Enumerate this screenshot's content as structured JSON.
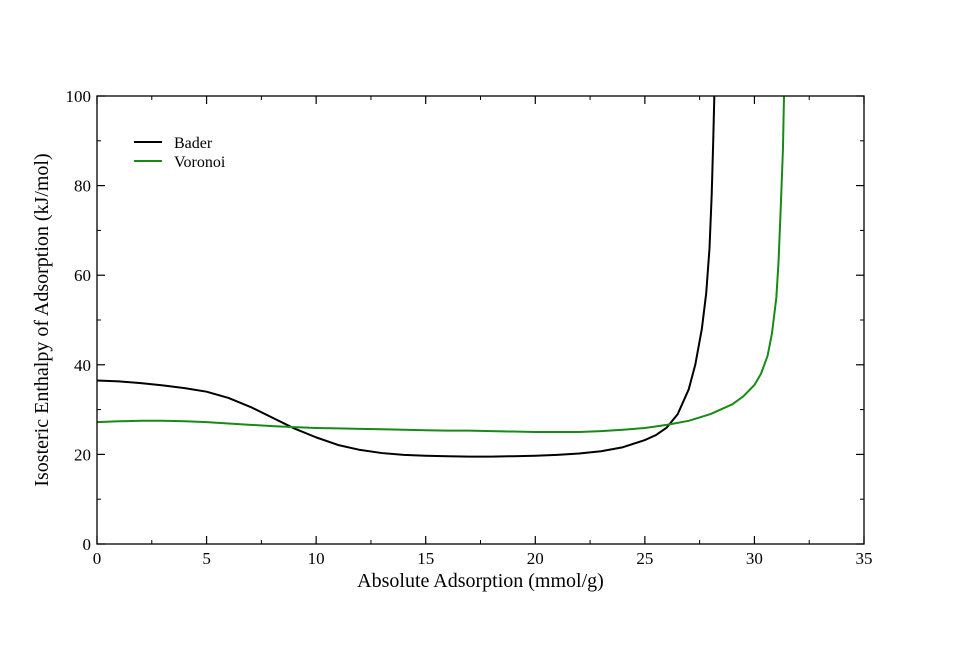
{
  "chart_data": {
    "type": "line",
    "title": "",
    "xlabel": "Absolute Adsorption (mmol/g)",
    "ylabel": "Isosteric Enthalpy of Adsorption (kJ/mol)",
    "xlim": [
      0,
      35
    ],
    "ylim": [
      0,
      100
    ],
    "xticks": [
      0,
      5,
      10,
      15,
      20,
      25,
      30,
      35
    ],
    "yticks": [
      0,
      20,
      40,
      60,
      80,
      100
    ],
    "x_minor_step": 2.5,
    "y_minor_step": 10,
    "grid": false,
    "legend_position": "top-left",
    "series": [
      {
        "name": "Bader",
        "color": "#000000",
        "points": [
          [
            0,
            36.5
          ],
          [
            1,
            36.3
          ],
          [
            2,
            35.9
          ],
          [
            3,
            35.4
          ],
          [
            4,
            34.8
          ],
          [
            5,
            34.0
          ],
          [
            6,
            32.6
          ],
          [
            7,
            30.6
          ],
          [
            8,
            28.2
          ],
          [
            9,
            25.8
          ],
          [
            10,
            23.8
          ],
          [
            11,
            22.1
          ],
          [
            12,
            21.0
          ],
          [
            13,
            20.3
          ],
          [
            14,
            19.9
          ],
          [
            15,
            19.7
          ],
          [
            16,
            19.6
          ],
          [
            17,
            19.5
          ],
          [
            18,
            19.5
          ],
          [
            19,
            19.6
          ],
          [
            20,
            19.7
          ],
          [
            21,
            19.9
          ],
          [
            22,
            20.2
          ],
          [
            23,
            20.7
          ],
          [
            24,
            21.6
          ],
          [
            25,
            23.2
          ],
          [
            25.5,
            24.3
          ],
          [
            26,
            26.0
          ],
          [
            26.5,
            29.0
          ],
          [
            27,
            34.5
          ],
          [
            27.3,
            40.0
          ],
          [
            27.6,
            48.0
          ],
          [
            27.8,
            56.0
          ],
          [
            27.95,
            66.0
          ],
          [
            28.05,
            78.0
          ],
          [
            28.12,
            90.0
          ],
          [
            28.17,
            100.0
          ]
        ]
      },
      {
        "name": "Voronoi",
        "color": "#178a17",
        "points": [
          [
            0,
            27.2
          ],
          [
            1,
            27.4
          ],
          [
            2,
            27.5
          ],
          [
            3,
            27.5
          ],
          [
            4,
            27.4
          ],
          [
            5,
            27.2
          ],
          [
            6,
            26.9
          ],
          [
            7,
            26.6
          ],
          [
            8,
            26.3
          ],
          [
            9,
            26.1
          ],
          [
            10,
            25.9
          ],
          [
            11,
            25.8
          ],
          [
            12,
            25.7
          ],
          [
            13,
            25.6
          ],
          [
            14,
            25.5
          ],
          [
            15,
            25.4
          ],
          [
            16,
            25.3
          ],
          [
            17,
            25.3
          ],
          [
            18,
            25.2
          ],
          [
            19,
            25.1
          ],
          [
            20,
            25.0
          ],
          [
            21,
            25.0
          ],
          [
            22,
            25.0
          ],
          [
            23,
            25.2
          ],
          [
            24,
            25.5
          ],
          [
            25,
            25.9
          ],
          [
            26,
            26.6
          ],
          [
            27,
            27.5
          ],
          [
            28,
            29.0
          ],
          [
            29,
            31.2
          ],
          [
            29.5,
            33.0
          ],
          [
            30,
            35.5
          ],
          [
            30.3,
            38.0
          ],
          [
            30.6,
            42.0
          ],
          [
            30.8,
            47.0
          ],
          [
            31.0,
            55.0
          ],
          [
            31.1,
            63.0
          ],
          [
            31.2,
            75.0
          ],
          [
            31.3,
            88.0
          ],
          [
            31.35,
            100.0
          ]
        ]
      }
    ]
  }
}
